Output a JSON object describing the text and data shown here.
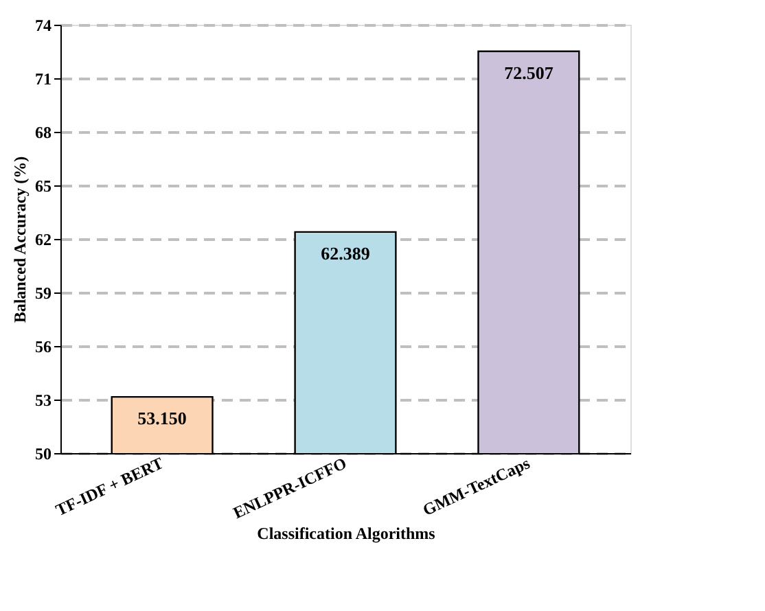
{
  "chart_data": {
    "type": "bar",
    "xlabel": "Classification Algorithms",
    "ylabel": "Balanced Accuracy (%)",
    "categories": [
      "TF-IDF + BERT",
      "ENLPPR-ICFFO",
      "GMM-TextCaps"
    ],
    "values": [
      53.15,
      62.389,
      72.507
    ],
    "colors": [
      "#fcd5b4",
      "#b7dee8",
      "#ccc1da"
    ],
    "ylim": [
      50,
      74
    ],
    "yticks": [
      50,
      53,
      56,
      59,
      62,
      65,
      68,
      71,
      74
    ],
    "value_labels": [
      "53.150",
      "62.389",
      "72.507"
    ],
    "grid": "y"
  }
}
